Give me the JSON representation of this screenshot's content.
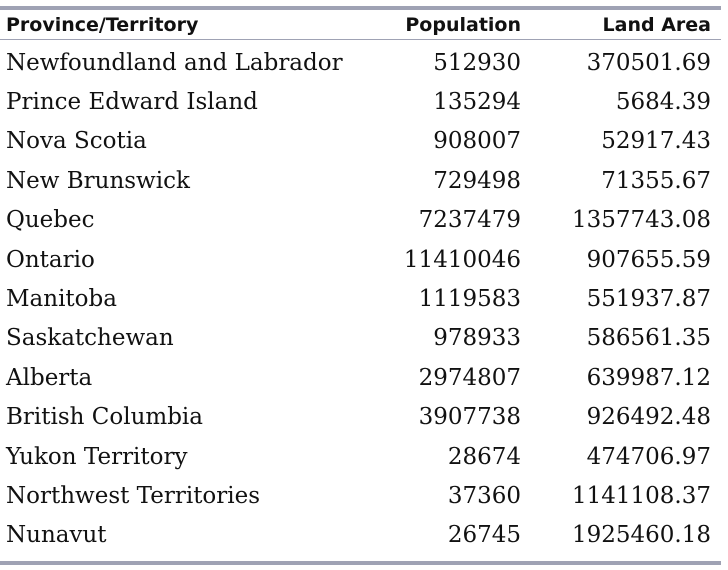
{
  "table": {
    "headers": {
      "name": "Province/Territory",
      "population": "Population",
      "area": "Land Area"
    },
    "rows": [
      {
        "name": "Newfoundland and Labrador",
        "population": "512930",
        "area": "370501.69"
      },
      {
        "name": "Prince Edward Island",
        "population": "135294",
        "area": "5684.39"
      },
      {
        "name": "Nova Scotia",
        "population": "908007",
        "area": "52917.43"
      },
      {
        "name": "New Brunswick",
        "population": "729498",
        "area": "71355.67"
      },
      {
        "name": "Quebec",
        "population": "7237479",
        "area": "1357743.08"
      },
      {
        "name": "Ontario",
        "population": "11410046",
        "area": "907655.59"
      },
      {
        "name": "Manitoba",
        "population": "1119583",
        "area": "551937.87"
      },
      {
        "name": "Saskatchewan",
        "population": "978933",
        "area": "586561.35"
      },
      {
        "name": "Alberta",
        "population": "2974807",
        "area": "639987.12"
      },
      {
        "name": "British Columbia",
        "population": "3907738",
        "area": "926492.48"
      },
      {
        "name": "Yukon Territory",
        "population": "28674",
        "area": "474706.97"
      },
      {
        "name": "Northwest Territories",
        "population": "37360",
        "area": "1141108.37"
      },
      {
        "name": "Nunavut",
        "population": "26745",
        "area": "1925460.18"
      }
    ]
  },
  "colors": {
    "rule": "#9fa2b4",
    "text": "#111111",
    "background": "#ffffff"
  }
}
